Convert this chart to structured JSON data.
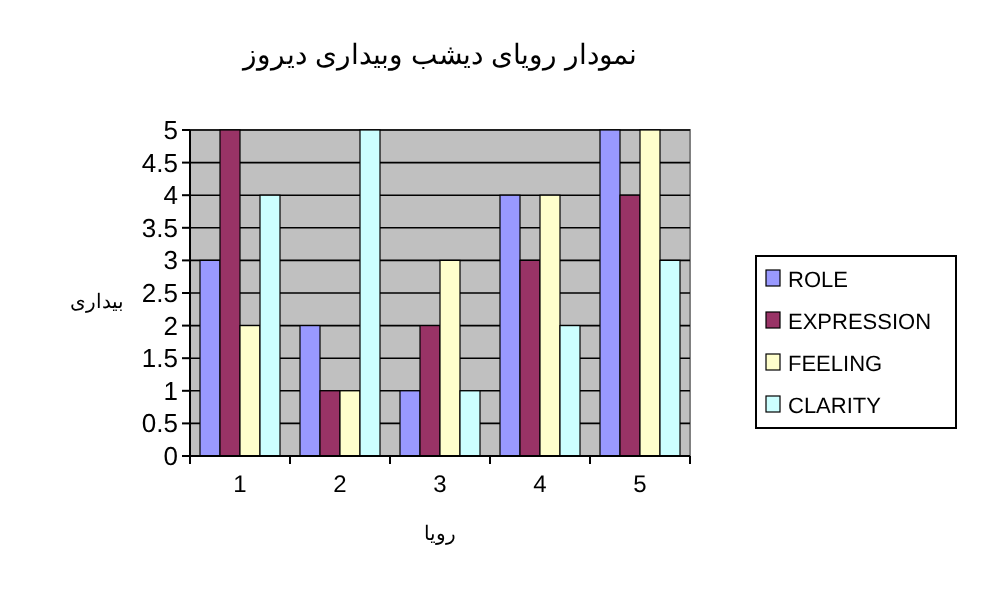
{
  "chart_data": {
    "type": "bar",
    "title": "نمودار رویای دیشب وبیداری دیروز",
    "xlabel": "رویا",
    "ylabel": "بیداری",
    "categories": [
      "1",
      "2",
      "3",
      "4",
      "5"
    ],
    "series": [
      {
        "name": "ROLE",
        "color": "#9999ff",
        "values": [
          3,
          2,
          1,
          4,
          5
        ]
      },
      {
        "name": "EXPRESSION",
        "color": "#993366",
        "values": [
          5,
          1,
          2,
          3,
          4
        ]
      },
      {
        "name": "FEELING",
        "color": "#ffffcc",
        "values": [
          2,
          1,
          3,
          4,
          5
        ]
      },
      {
        "name": "CLARITY",
        "color": "#ccffff",
        "values": [
          4,
          5,
          1,
          2,
          3
        ]
      }
    ],
    "ylim": [
      0,
      5
    ],
    "yticks": [
      0,
      0.5,
      1,
      1.5,
      2,
      2.5,
      3,
      3.5,
      4,
      4.5,
      5
    ],
    "grid": "y",
    "legend": "right"
  }
}
